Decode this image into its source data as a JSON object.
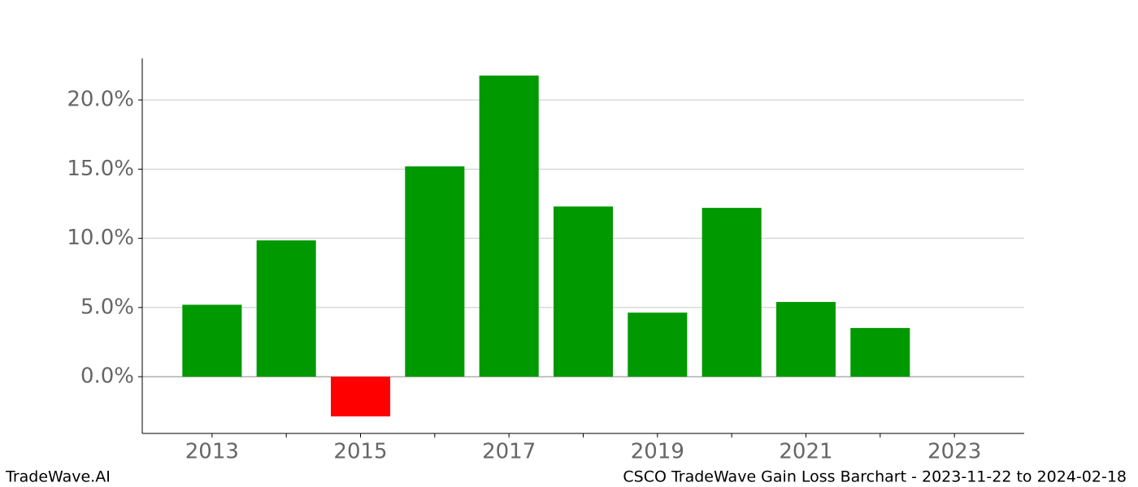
{
  "chart_data": {
    "type": "bar",
    "title": "CSCO TradeWave Gain Loss Barchart - 2023-11-22 to 2024-02-18",
    "watermark": "TradeWave.AI",
    "x": [
      2013,
      2014,
      2015,
      2016,
      2017,
      2018,
      2019,
      2020,
      2021,
      2022,
      2023
    ],
    "values": [
      5.2,
      9.85,
      -2.87,
      15.2,
      21.76,
      12.3,
      4.63,
      12.2,
      5.4,
      3.52,
      0
    ],
    "color_positive": "#009900",
    "color_negative": "#ff0000",
    "xlim": [
      2012.06,
      2023.94
    ],
    "xticks": [
      2013,
      2015,
      2017,
      2019,
      2021,
      2023
    ],
    "xminor_ticks": [
      2014,
      2016,
      2018,
      2020,
      2022
    ],
    "ylim": [
      -4.1,
      23
    ],
    "yticks": [
      {
        "value": 0,
        "label": "0.0%"
      },
      {
        "value": 5,
        "label": "5.0%"
      },
      {
        "value": 10,
        "label": "10.0%"
      },
      {
        "value": 15,
        "label": "15.0%"
      },
      {
        "value": 20,
        "label": "20.0%"
      }
    ],
    "grid": true
  }
}
